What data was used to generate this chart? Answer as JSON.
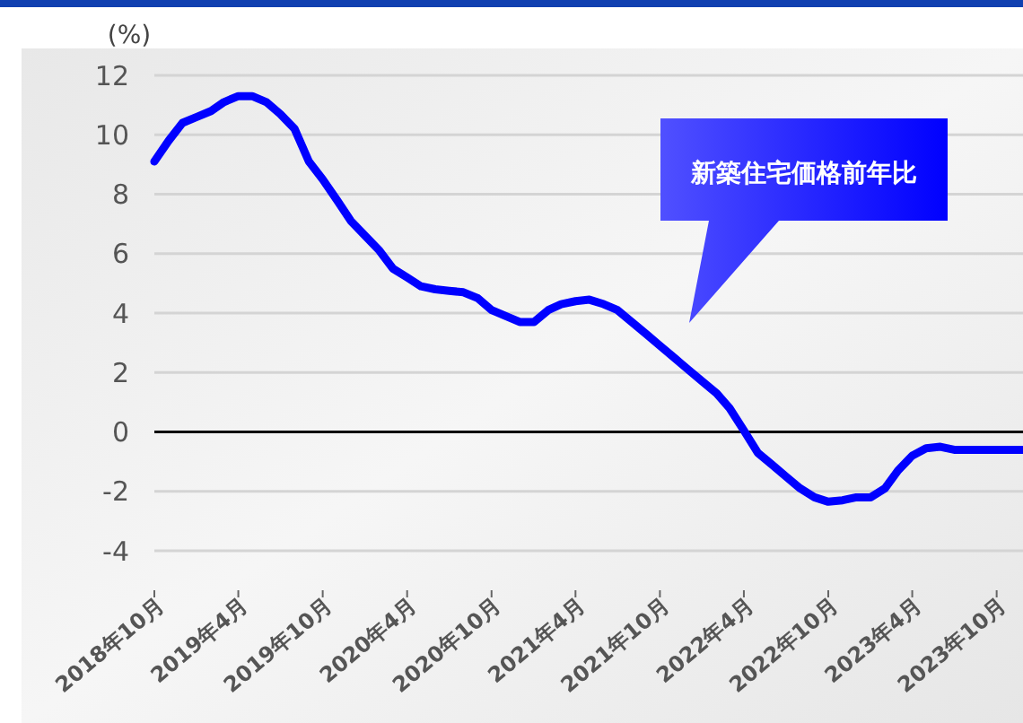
{
  "chart_data": {
    "type": "line",
    "ylabel": "(%)",
    "annotations": [
      "新築住宅価格前年比"
    ],
    "x": [
      "2018-10",
      "2018-11",
      "2018-12",
      "2019-01",
      "2019-02",
      "2019-03",
      "2019-04",
      "2019-05",
      "2019-06",
      "2019-07",
      "2019-08",
      "2019-09",
      "2019-10",
      "2019-11",
      "2019-12",
      "2020-01",
      "2020-02",
      "2020-03",
      "2020-04",
      "2020-05",
      "2020-06",
      "2020-07",
      "2020-08",
      "2020-09",
      "2020-10",
      "2020-11",
      "2020-12",
      "2021-01",
      "2021-02",
      "2021-03",
      "2021-04",
      "2021-05",
      "2021-06",
      "2021-07",
      "2021-08",
      "2021-09",
      "2021-10",
      "2021-11",
      "2021-12",
      "2022-01",
      "2022-02",
      "2022-03",
      "2022-04",
      "2022-05",
      "2022-06",
      "2022-07",
      "2022-08",
      "2022-09",
      "2022-10",
      "2022-11",
      "2022-12",
      "2023-01",
      "2023-02",
      "2023-03",
      "2023-04",
      "2023-05",
      "2023-06",
      "2023-07",
      "2023-08",
      "2023-09",
      "2023-10",
      "2023-11",
      "2023-12"
    ],
    "series": [
      {
        "color": "#0000ff",
        "values": [
          9.1,
          9.8,
          10.4,
          10.6,
          10.8,
          11.1,
          11.3,
          11.3,
          11.1,
          10.7,
          10.2,
          9.1,
          8.5,
          7.8,
          7.1,
          6.6,
          6.1,
          5.5,
          5.2,
          4.9,
          4.8,
          4.75,
          4.7,
          4.5,
          4.1,
          3.9,
          3.7,
          3.7,
          4.1,
          4.3,
          4.4,
          4.45,
          4.3,
          4.1,
          3.7,
          3.3,
          2.9,
          2.5,
          2.1,
          1.7,
          1.3,
          0.8,
          0.05,
          -0.7,
          -1.1,
          -1.5,
          -1.9,
          -2.2,
          -2.35,
          -2.3,
          -2.2,
          -2.2,
          -1.9,
          -1.3,
          -0.8,
          -0.55,
          -0.5,
          -0.6,
          -0.6,
          -0.6,
          -0.6,
          -0.6,
          -0.6
        ]
      }
    ],
    "xlim": [
      "2018-10",
      "2023-12"
    ],
    "xticks": [
      {
        "value": "2018-10",
        "label": "2018年10月"
      },
      {
        "value": "2019-04",
        "label": "2019年4月"
      },
      {
        "value": "2019-10",
        "label": "2019年10月"
      },
      {
        "value": "2020-04",
        "label": "2020年4月"
      },
      {
        "value": "2020-10",
        "label": "2020年10月"
      },
      {
        "value": "2021-04",
        "label": "2021年4月"
      },
      {
        "value": "2021-10",
        "label": "2021年10月"
      },
      {
        "value": "2022-04",
        "label": "2022年4月"
      },
      {
        "value": "2022-10",
        "label": "2022年10月"
      },
      {
        "value": "2023-04",
        "label": "2023年4月"
      },
      {
        "value": "2023-10",
        "label": "2023年10月"
      }
    ],
    "ylim": [
      -4,
      12
    ],
    "yticks": [
      -4,
      -2,
      0,
      2,
      4,
      6,
      8,
      10,
      12
    ],
    "ref_lines": [
      {
        "axis": "y",
        "value": 0,
        "color": "#000000"
      }
    ],
    "grid": "y",
    "line_style": "solid"
  }
}
